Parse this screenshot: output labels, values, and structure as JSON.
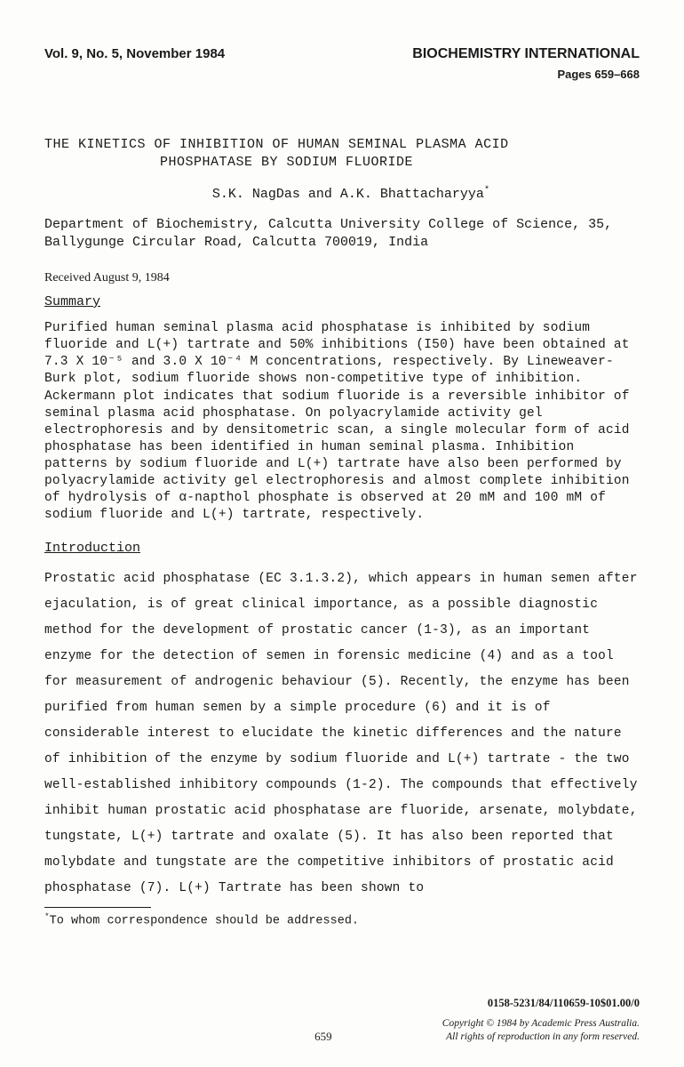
{
  "header": {
    "vol_issue": "Vol. 9, No. 5, November 1984",
    "journal": "BIOCHEMISTRY INTERNATIONAL",
    "pages": "Pages 659–668"
  },
  "title": {
    "line1": "THE KINETICS OF INHIBITION OF HUMAN SEMINAL PLASMA ACID",
    "line2": "PHOSPHATASE BY SODIUM FLUORIDE"
  },
  "authors": "S.K. NagDas   and   A.K. Bhattacharyya",
  "author_sup": "*",
  "affiliation": "Department of Biochemistry, Calcutta University College of Science, 35, Ballygunge Circular Road, Calcutta 700019, India",
  "received": "Received August 9, 1984",
  "sections": {
    "summary_heading": "Summary",
    "summary_body": "Purified human seminal plasma acid phosphatase is inhibited by sodium fluoride and L(+) tartrate and 50% inhibitions (I50) have been obtained at 7.3 X 10⁻⁵ and 3.0 X 10⁻⁴ M concentrations, respectively.  By Lineweaver-Burk plot, sodium fluoride shows  non-competitive type of inhibition.  Ackermann plot indicates that sodium fluoride is a reversible inhibitor of seminal plasma acid phosphatase. On polyacrylamide activity gel electrophoresis and by densitometric scan, a single molecular form of acid phosphatase has been identified in human seminal plasma. Inhibition patterns by sodium fluoride and L(+) tartrate have also been performed by polyacrylamide activity gel electrophoresis and almost complete inhibition of hydrolysis of α-napthol phosphate is observed at 20 mM and 100 mM of sodium fluoride and L(+) tartrate, respectively.",
    "intro_heading": "Introduction",
    "intro_body": "Prostatic acid phosphatase (EC 3.1.3.2), which appears in human semen after ejaculation, is of great clinical importance, as a possible diagnostic method for the development of prostatic cancer (1-3), as an important enzyme for the detection of semen in forensic medicine (4) and as a tool for measurement of androgenic behaviour (5).  Recently, the enzyme has been purified from human semen by a simple procedure (6) and it is of considerable interest to elucidate the kinetic differences and the nature of inhibition of the enzyme by sodium fluoride and L(+) tartrate - the two well-established inhibitory compounds (1-2).  The compounds that effectively inhibit human prostatic acid phosphatase are fluoride, arsenate, molybdate, tungstate, L(+) tartrate and oxalate (5).  It has also been reported that molybdate and tungstate are the competitive inhibitors of prostatic acid phosphatase (7).  L(+) Tartrate has been shown to"
  },
  "footnote": {
    "marker": "*",
    "text": "To whom correspondence should be addressed."
  },
  "footer": {
    "issn": "0158-5231/84/110659-10$01.00/0",
    "page_num": "659",
    "copyright_line1": "Copyright © 1984 by Academic Press Australia.",
    "copyright_line2": "All rights of reproduction in any form reserved."
  }
}
